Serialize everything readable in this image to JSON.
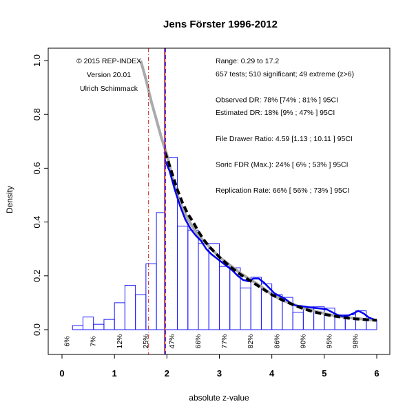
{
  "chart_data": {
    "type": "bar",
    "title": "Jens Förster 1996-2012",
    "xlabel": "absolute z-value",
    "ylabel": "Density",
    "xlim": [
      0,
      6
    ],
    "ylim": [
      0,
      1.0
    ],
    "x_ticks": [
      "0",
      "1",
      "2",
      "3",
      "4",
      "5",
      "6"
    ],
    "y_ticks": [
      "0.0",
      "0.2",
      "0.4",
      "0.6",
      "0.8",
      "1.0"
    ],
    "grid": false,
    "bin_width": 0.2,
    "bins": [
      {
        "x0": 0.0,
        "x1": 0.2,
        "density": 0.0
      },
      {
        "x0": 0.2,
        "x1": 0.4,
        "density": 0.015
      },
      {
        "x0": 0.4,
        "x1": 0.6,
        "density": 0.047
      },
      {
        "x0": 0.6,
        "x1": 0.8,
        "density": 0.02
      },
      {
        "x0": 0.8,
        "x1": 1.0,
        "density": 0.038
      },
      {
        "x0": 1.0,
        "x1": 1.2,
        "density": 0.1
      },
      {
        "x0": 1.2,
        "x1": 1.4,
        "density": 0.165
      },
      {
        "x0": 1.4,
        "x1": 1.6,
        "density": 0.13
      },
      {
        "x0": 1.6,
        "x1": 1.8,
        "density": 0.245
      },
      {
        "x0": 1.8,
        "x1": 1.96,
        "density": 0.435
      },
      {
        "x0": 1.96,
        "x1": 2.2,
        "density": 0.64
      },
      {
        "x0": 2.2,
        "x1": 2.4,
        "density": 0.385
      },
      {
        "x0": 2.4,
        "x1": 2.6,
        "density": 0.37
      },
      {
        "x0": 2.6,
        "x1": 2.8,
        "density": 0.32
      },
      {
        "x0": 2.8,
        "x1": 3.0,
        "density": 0.32
      },
      {
        "x0": 3.0,
        "x1": 3.2,
        "density": 0.235
      },
      {
        "x0": 3.2,
        "x1": 3.4,
        "density": 0.23
      },
      {
        "x0": 3.4,
        "x1": 3.6,
        "density": 0.155
      },
      {
        "x0": 3.6,
        "x1": 3.8,
        "density": 0.195
      },
      {
        "x0": 3.8,
        "x1": 4.0,
        "density": 0.17
      },
      {
        "x0": 4.0,
        "x1": 4.2,
        "density": 0.13
      },
      {
        "x0": 4.2,
        "x1": 4.4,
        "density": 0.12
      },
      {
        "x0": 4.4,
        "x1": 4.6,
        "density": 0.065
      },
      {
        "x0": 4.6,
        "x1": 4.8,
        "density": 0.085
      },
      {
        "x0": 4.8,
        "x1": 5.0,
        "density": 0.085
      },
      {
        "x0": 5.0,
        "x1": 5.2,
        "density": 0.08
      },
      {
        "x0": 5.2,
        "x1": 5.4,
        "density": 0.055
      },
      {
        "x0": 5.4,
        "x1": 5.6,
        "density": 0.055
      },
      {
        "x0": 5.6,
        "x1": 5.8,
        "density": 0.07
      },
      {
        "x0": 5.8,
        "x1": 6.0,
        "density": 0.035
      }
    ],
    "curves": {
      "observed_density_blue": {
        "x": [
          1.96,
          2.05,
          2.15,
          2.25,
          2.35,
          2.45,
          2.55,
          2.65,
          2.75,
          2.85,
          2.95,
          3.05,
          3.15,
          3.25,
          3.35,
          3.45,
          3.55,
          3.65,
          3.75,
          3.85,
          3.95,
          4.05,
          4.15,
          4.25,
          4.35,
          4.45,
          4.55,
          4.65,
          4.75,
          4.85,
          4.95,
          5.05,
          5.15,
          5.25,
          5.35,
          5.45,
          5.55,
          5.65,
          5.75,
          5.85,
          5.95,
          6.0
        ],
        "y": [
          0.63,
          0.59,
          0.52,
          0.46,
          0.41,
          0.375,
          0.35,
          0.33,
          0.3,
          0.28,
          0.265,
          0.25,
          0.235,
          0.22,
          0.2,
          0.185,
          0.18,
          0.19,
          0.19,
          0.175,
          0.155,
          0.135,
          0.125,
          0.115,
          0.1,
          0.09,
          0.088,
          0.085,
          0.082,
          0.08,
          0.078,
          0.075,
          0.065,
          0.055,
          0.05,
          0.052,
          0.06,
          0.07,
          0.06,
          0.045,
          0.038,
          0.035
        ]
      },
      "model_fit_gray": {
        "x": [
          1.5,
          1.6,
          1.7,
          1.8,
          1.9,
          2.0,
          2.1,
          2.2,
          2.3,
          2.4,
          2.5,
          2.6,
          2.7,
          2.8,
          2.9,
          3.0,
          3.2,
          3.4,
          3.6,
          3.8,
          4.0,
          4.2,
          4.4,
          4.6,
          4.8,
          5.0,
          5.2,
          5.4,
          5.6,
          5.8,
          6.0
        ],
        "y": [
          1.0,
          0.93,
          0.85,
          0.78,
          0.71,
          0.65,
          0.57,
          0.5,
          0.45,
          0.41,
          0.38,
          0.35,
          0.33,
          0.31,
          0.29,
          0.27,
          0.24,
          0.21,
          0.185,
          0.16,
          0.13,
          0.11,
          0.095,
          0.08,
          0.07,
          0.06,
          0.052,
          0.046,
          0.042,
          0.038,
          0.034
        ]
      },
      "estimated_black_dashed": {
        "x": [
          1.96,
          2.0,
          2.1,
          2.2,
          2.3,
          2.4,
          2.5,
          2.6,
          2.7,
          2.8,
          2.9,
          3.0,
          3.2,
          3.4,
          3.6,
          3.8,
          4.0,
          4.2,
          4.4,
          4.6,
          4.8,
          5.0,
          5.2,
          5.4,
          5.6,
          5.8,
          6.0
        ],
        "y": [
          0.66,
          0.64,
          0.58,
          0.52,
          0.47,
          0.43,
          0.4,
          0.365,
          0.335,
          0.31,
          0.29,
          0.27,
          0.235,
          0.205,
          0.18,
          0.155,
          0.13,
          0.11,
          0.093,
          0.078,
          0.066,
          0.057,
          0.05,
          0.044,
          0.04,
          0.037,
          0.035
        ]
      }
    },
    "vertical_lines": [
      {
        "x": 1.65,
        "style": "dash-dot",
        "color": "#cc2222"
      },
      {
        "x": 1.96,
        "style": "solid",
        "color": "#cc2222"
      },
      {
        "x": 1.96,
        "style": "dashed",
        "color": "#1a1aff"
      }
    ],
    "percent_labels": [
      {
        "x": 0.14,
        "text": "6%"
      },
      {
        "x": 0.64,
        "text": "7%"
      },
      {
        "x": 1.14,
        "text": "12%"
      },
      {
        "x": 1.64,
        "text": "25%"
      },
      {
        "x": 2.14,
        "text": "47%"
      },
      {
        "x": 2.64,
        "text": "66%"
      },
      {
        "x": 3.14,
        "text": "77%"
      },
      {
        "x": 3.64,
        "text": "82%"
      },
      {
        "x": 4.14,
        "text": "86%"
      },
      {
        "x": 4.64,
        "text": "90%"
      },
      {
        "x": 5.14,
        "text": "95%"
      },
      {
        "x": 5.64,
        "text": "98%"
      }
    ],
    "annotations_left": [
      "© 2015 REP-INDEX",
      "Version 20.01",
      "Ulrich Schimmack"
    ],
    "annotations_right": [
      "Range: 0.29 to 17.2",
      "657 tests; 510 significant; 49 extreme (z>6)",
      "",
      "Observed DR: 78% [74% ; 81% ] 95CI",
      "Estimated DR: 18% [9% ; 47% ] 95CI",
      "",
      "File Drawer Ratio: 4.59 [1.13 ; 10.11 ] 95CI",
      "",
      "Soric FDR (Max.): 24% [ 6% ; 53% ] 95CI",
      "",
      "Replication Rate: 66% [ 56% ; 73% ] 95CI"
    ],
    "colors": {
      "bar_stroke": "#1a1aff",
      "observed_curve": "#0000ee",
      "model_curve": "#aaaaaa",
      "estimated_curve": "#000000"
    }
  }
}
